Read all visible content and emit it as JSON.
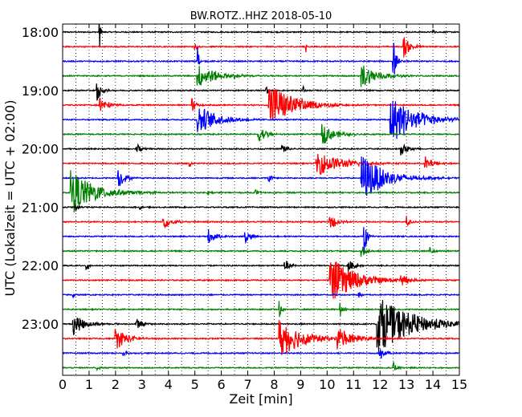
{
  "chart_data": {
    "type": "line",
    "title": "BW.ROTZ..HHZ 2018-05-10",
    "xlabel": "Zeit  [min]",
    "ylabel": "UTC (Lokalzeit = UTC + 02:00)",
    "xlim": [
      0,
      15
    ],
    "x_ticks": [
      "0",
      "1",
      "2",
      "3",
      "4",
      "5",
      "6",
      "7",
      "8",
      "9",
      "10",
      "11",
      "12",
      "13",
      "14",
      "15"
    ],
    "y_ticks": [
      {
        "label": "18:00",
        "trace": 0
      },
      {
        "label": "19:00",
        "trace": 4
      },
      {
        "label": "20:00",
        "trace": 8
      },
      {
        "label": "21:00",
        "trace": 12
      },
      {
        "label": "22:00",
        "trace": 16
      },
      {
        "label": "23:00",
        "trace": 20
      }
    ],
    "minutes_per_trace": 15,
    "vertical_grid": "dotted, every 0.5 min",
    "trace_colors": [
      "#000000",
      "#ff0000",
      "#0000ff",
      "#008000"
    ],
    "traces": [
      {
        "start": "18:00",
        "events": [
          {
            "t": 1.4,
            "amp": 20,
            "dur": 0.08
          },
          {
            "t": 14.0,
            "amp": 8,
            "dur": 0.08
          }
        ]
      },
      {
        "start": "18:15",
        "events": [
          {
            "t": 5.0,
            "amp": 6,
            "dur": 0.15
          },
          {
            "t": 9.2,
            "amp": 12,
            "dur": 0.05
          },
          {
            "t": 12.9,
            "amp": 14,
            "dur": 0.5
          }
        ]
      },
      {
        "start": "18:30",
        "events": [
          {
            "t": 5.1,
            "amp": 30,
            "dur": 0.1
          },
          {
            "t": 12.5,
            "amp": 30,
            "dur": 0.2
          }
        ]
      },
      {
        "start": "18:45",
        "events": [
          {
            "t": 5.1,
            "amp": 16,
            "dur": 1.4
          },
          {
            "t": 11.3,
            "amp": 16,
            "dur": 1.3
          },
          {
            "t": 6.5,
            "amp": 4,
            "dur": 0.1
          }
        ]
      },
      {
        "start": "19:00",
        "events": [
          {
            "t": 1.3,
            "amp": 18,
            "dur": 0.3
          },
          {
            "t": 7.7,
            "amp": 6,
            "dur": 0.2
          },
          {
            "t": 9.1,
            "amp": 5,
            "dur": 0.1
          }
        ]
      },
      {
        "start": "19:15",
        "events": [
          {
            "t": 1.4,
            "amp": 12,
            "dur": 0.6
          },
          {
            "t": 4.9,
            "amp": 10,
            "dur": 0.3
          },
          {
            "t": 7.8,
            "amp": 32,
            "dur": 1.8
          },
          {
            "t": 9.0,
            "amp": 10,
            "dur": 0.1
          }
        ]
      },
      {
        "start": "19:30",
        "events": [
          {
            "t": 5.1,
            "amp": 20,
            "dur": 1.5
          },
          {
            "t": 12.4,
            "amp": 32,
            "dur": 2.0
          }
        ]
      },
      {
        "start": "19:45",
        "events": [
          {
            "t": 7.4,
            "amp": 12,
            "dur": 0.6
          },
          {
            "t": 9.8,
            "amp": 14,
            "dur": 1.0
          }
        ]
      },
      {
        "start": "20:00",
        "events": [
          {
            "t": 2.8,
            "amp": 8,
            "dur": 0.4
          },
          {
            "t": 8.3,
            "amp": 8,
            "dur": 0.4
          },
          {
            "t": 12.8,
            "amp": 8,
            "dur": 0.6
          }
        ]
      },
      {
        "start": "20:15",
        "events": [
          {
            "t": 9.6,
            "amp": 16,
            "dur": 2.0
          },
          {
            "t": 13.7,
            "amp": 10,
            "dur": 0.6
          },
          {
            "t": 4.8,
            "amp": 6,
            "dur": 0.1
          }
        ]
      },
      {
        "start": "20:30",
        "events": [
          {
            "t": 2.1,
            "amp": 14,
            "dur": 0.5
          },
          {
            "t": 11.3,
            "amp": 32,
            "dur": 1.8
          },
          {
            "t": 7.8,
            "amp": 8,
            "dur": 0.2
          }
        ]
      },
      {
        "start": "20:45",
        "events": [
          {
            "t": 0.3,
            "amp": 28,
            "dur": 2.0
          },
          {
            "t": 5.5,
            "amp": 4,
            "dur": 0.2
          },
          {
            "t": 7.3,
            "amp": 4,
            "dur": 0.2
          }
        ]
      },
      {
        "start": "21:00",
        "events": [
          {
            "t": 0.5,
            "amp": 6,
            "dur": 0.2
          },
          {
            "t": 2.9,
            "amp": 5,
            "dur": 0.2
          }
        ]
      },
      {
        "start": "21:15",
        "events": [
          {
            "t": 3.8,
            "amp": 10,
            "dur": 0.6
          },
          {
            "t": 10.1,
            "amp": 12,
            "dur": 0.5
          },
          {
            "t": 13.0,
            "amp": 8,
            "dur": 0.3
          }
        ]
      },
      {
        "start": "21:30",
        "events": [
          {
            "t": 5.5,
            "amp": 10,
            "dur": 0.6
          },
          {
            "t": 6.9,
            "amp": 10,
            "dur": 0.4
          },
          {
            "t": 11.4,
            "amp": 30,
            "dur": 0.2
          }
        ]
      },
      {
        "start": "21:45",
        "events": [
          {
            "t": 11.3,
            "amp": 8,
            "dur": 0.4
          },
          {
            "t": 13.9,
            "amp": 6,
            "dur": 0.3
          }
        ]
      },
      {
        "start": "22:00",
        "events": [
          {
            "t": 0.9,
            "amp": 8,
            "dur": 0.2
          },
          {
            "t": 8.4,
            "amp": 8,
            "dur": 0.4
          },
          {
            "t": 10.8,
            "amp": 8,
            "dur": 0.5
          }
        ]
      },
      {
        "start": "22:15",
        "events": [
          {
            "t": 10.1,
            "amp": 30,
            "dur": 2.0
          },
          {
            "t": 12.8,
            "amp": 10,
            "dur": 0.5
          }
        ]
      },
      {
        "start": "22:30",
        "events": [
          {
            "t": 0.4,
            "amp": 6,
            "dur": 0.1
          },
          {
            "t": 11.2,
            "amp": 6,
            "dur": 0.2
          }
        ]
      },
      {
        "start": "22:45",
        "events": [
          {
            "t": 8.2,
            "amp": 10,
            "dur": 0.2
          },
          {
            "t": 10.5,
            "amp": 8,
            "dur": 0.3
          }
        ]
      },
      {
        "start": "23:00",
        "events": [
          {
            "t": 0.4,
            "amp": 14,
            "dur": 0.9
          },
          {
            "t": 11.9,
            "amp": 36,
            "dur": 2.8
          },
          {
            "t": 2.8,
            "amp": 8,
            "dur": 0.4
          }
        ]
      },
      {
        "start": "23:15",
        "events": [
          {
            "t": 2.0,
            "amp": 14,
            "dur": 1.0
          },
          {
            "t": 8.2,
            "amp": 26,
            "dur": 1.8
          },
          {
            "t": 10.4,
            "amp": 14,
            "dur": 1.3
          }
        ]
      },
      {
        "start": "23:30",
        "events": [
          {
            "t": 2.3,
            "amp": 6,
            "dur": 0.2
          },
          {
            "t": 12.0,
            "amp": 10,
            "dur": 0.4
          }
        ]
      },
      {
        "start": "23:45",
        "events": [
          {
            "t": 1.3,
            "amp": 4,
            "dur": 0.2
          },
          {
            "t": 12.5,
            "amp": 8,
            "dur": 0.3
          }
        ]
      }
    ]
  }
}
